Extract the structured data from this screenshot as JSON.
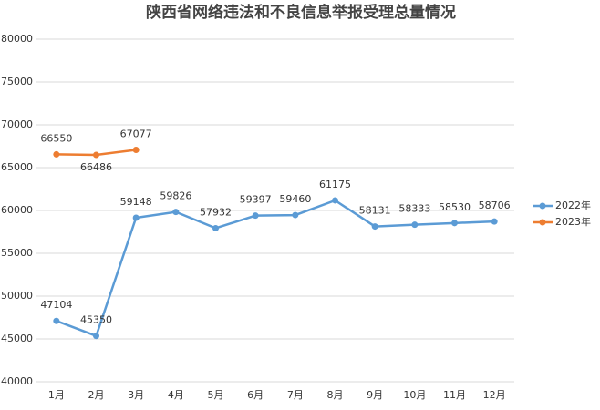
{
  "chart_data": {
    "type": "line",
    "title": "陕西省网络违法和不良信息举报受理总量情况",
    "categories": [
      "1月",
      "2月",
      "3月",
      "4月",
      "5月",
      "6月",
      "7月",
      "8月",
      "9月",
      "10月",
      "11月",
      "12月"
    ],
    "series": [
      {
        "name": "2022年",
        "color": "#5b9bd5",
        "values": [
          47104,
          45350,
          59148,
          59826,
          57932,
          59397,
          59460,
          61175,
          58131,
          58333,
          58530,
          58706
        ]
      },
      {
        "name": "2023年",
        "color": "#ed7d31",
        "values": [
          66550,
          66486,
          67077,
          null,
          null,
          null,
          null,
          null,
          null,
          null,
          null,
          null
        ]
      }
    ],
    "ylim": [
      40000,
      80000
    ],
    "yticks": [
      40000,
      45000,
      50000,
      55000,
      60000,
      65000,
      70000,
      75000,
      80000
    ],
    "grid": true,
    "legend": "right"
  }
}
